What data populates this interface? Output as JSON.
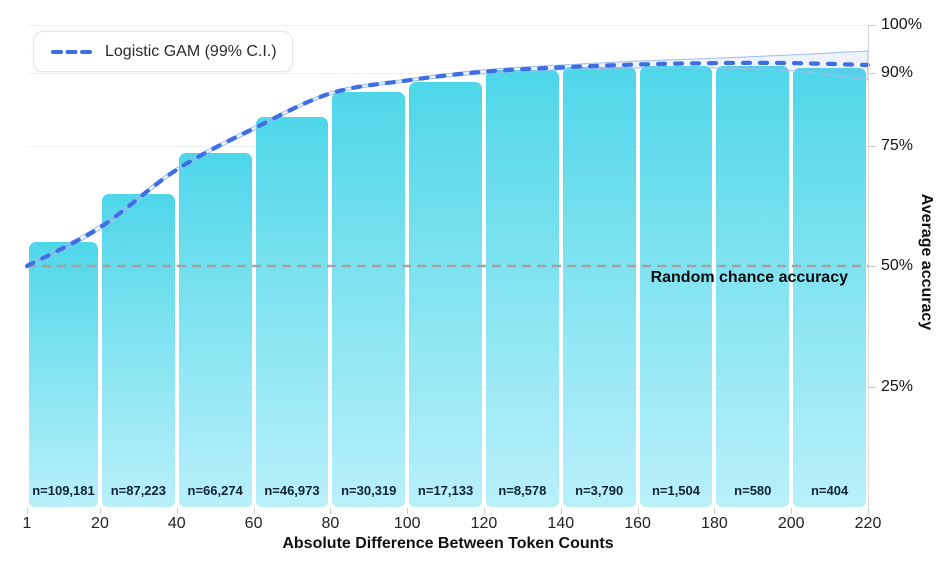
{
  "legend": {
    "label": "Logistic GAM (99% C.I.)"
  },
  "chart_data": {
    "type": "bar",
    "title": "",
    "xlabel": "Absolute Difference Between Token Counts",
    "ylabel": "Average accuracy",
    "xlim": [
      1,
      220
    ],
    "ylim": [
      0,
      100
    ],
    "grid": "horizontal-faint",
    "legend_position": "top-left",
    "y_axis_side": "right",
    "x_ticks": [
      {
        "value": 1,
        "label": "1"
      },
      {
        "value": 20,
        "label": "20"
      },
      {
        "value": 40,
        "label": "40"
      },
      {
        "value": 60,
        "label": "60"
      },
      {
        "value": 80,
        "label": "80"
      },
      {
        "value": 100,
        "label": "100"
      },
      {
        "value": 120,
        "label": "120"
      },
      {
        "value": 140,
        "label": "140"
      },
      {
        "value": 160,
        "label": "160"
      },
      {
        "value": 180,
        "label": "180"
      },
      {
        "value": 200,
        "label": "200"
      },
      {
        "value": 220,
        "label": "220"
      }
    ],
    "y_ticks": [
      {
        "value": 100,
        "label": "100%"
      },
      {
        "value": 90,
        "label": "90%"
      },
      {
        "value": 75,
        "label": "75%"
      },
      {
        "value": 50,
        "label": "50%"
      },
      {
        "value": 25,
        "label": "25%"
      }
    ],
    "bars": [
      {
        "range": [
          1,
          20
        ],
        "accuracy_pct": 55.0,
        "n_label": "n=109,181"
      },
      {
        "range": [
          20,
          40
        ],
        "accuracy_pct": 65.0,
        "n_label": "n=87,223"
      },
      {
        "range": [
          40,
          60
        ],
        "accuracy_pct": 73.5,
        "n_label": "n=66,274"
      },
      {
        "range": [
          60,
          80
        ],
        "accuracy_pct": 81.0,
        "n_label": "n=46,973"
      },
      {
        "range": [
          80,
          100
        ],
        "accuracy_pct": 86.0,
        "n_label": "n=30,319"
      },
      {
        "range": [
          100,
          120
        ],
        "accuracy_pct": 88.2,
        "n_label": "n=17,133"
      },
      {
        "range": [
          120,
          140
        ],
        "accuracy_pct": 90.6,
        "n_label": "n=8,578"
      },
      {
        "range": [
          140,
          160
        ],
        "accuracy_pct": 91.3,
        "n_label": "n=3,790"
      },
      {
        "range": [
          160,
          180
        ],
        "accuracy_pct": 91.5,
        "n_label": "n=1,504"
      },
      {
        "range": [
          180,
          200
        ],
        "accuracy_pct": 91.4,
        "n_label": "n=580"
      },
      {
        "range": [
          200,
          220
        ],
        "accuracy_pct": 91.0,
        "n_label": "n=404"
      }
    ],
    "gam_curve": {
      "x": [
        1,
        20,
        40,
        60,
        80,
        100,
        120,
        140,
        160,
        180,
        200,
        220
      ],
      "y": [
        50.0,
        58.0,
        70.0,
        78.5,
        85.8,
        88.5,
        90.3,
        91.2,
        91.8,
        92.1,
        92.1,
        91.7
      ],
      "ci_upper": [
        50.4,
        58.5,
        70.4,
        78.9,
        86.1,
        88.8,
        90.7,
        91.7,
        92.5,
        93.1,
        93.8,
        94.6
      ],
      "ci_lower": [
        49.6,
        57.5,
        69.6,
        78.1,
        85.5,
        88.2,
        89.9,
        90.7,
        91.1,
        91.1,
        90.5,
        88.6
      ]
    },
    "reference_line": {
      "value": 50,
      "label": "Random chance accuracy"
    },
    "colors": {
      "bar_top": "#4ed6e9",
      "bar_bottom": "#b9f0fa",
      "curve": "#3e6ee4",
      "ci_stroke": "#9fbdee",
      "ci_fill": "rgba(140,175,235,0.16)",
      "reference": "#a3a3a3"
    }
  }
}
